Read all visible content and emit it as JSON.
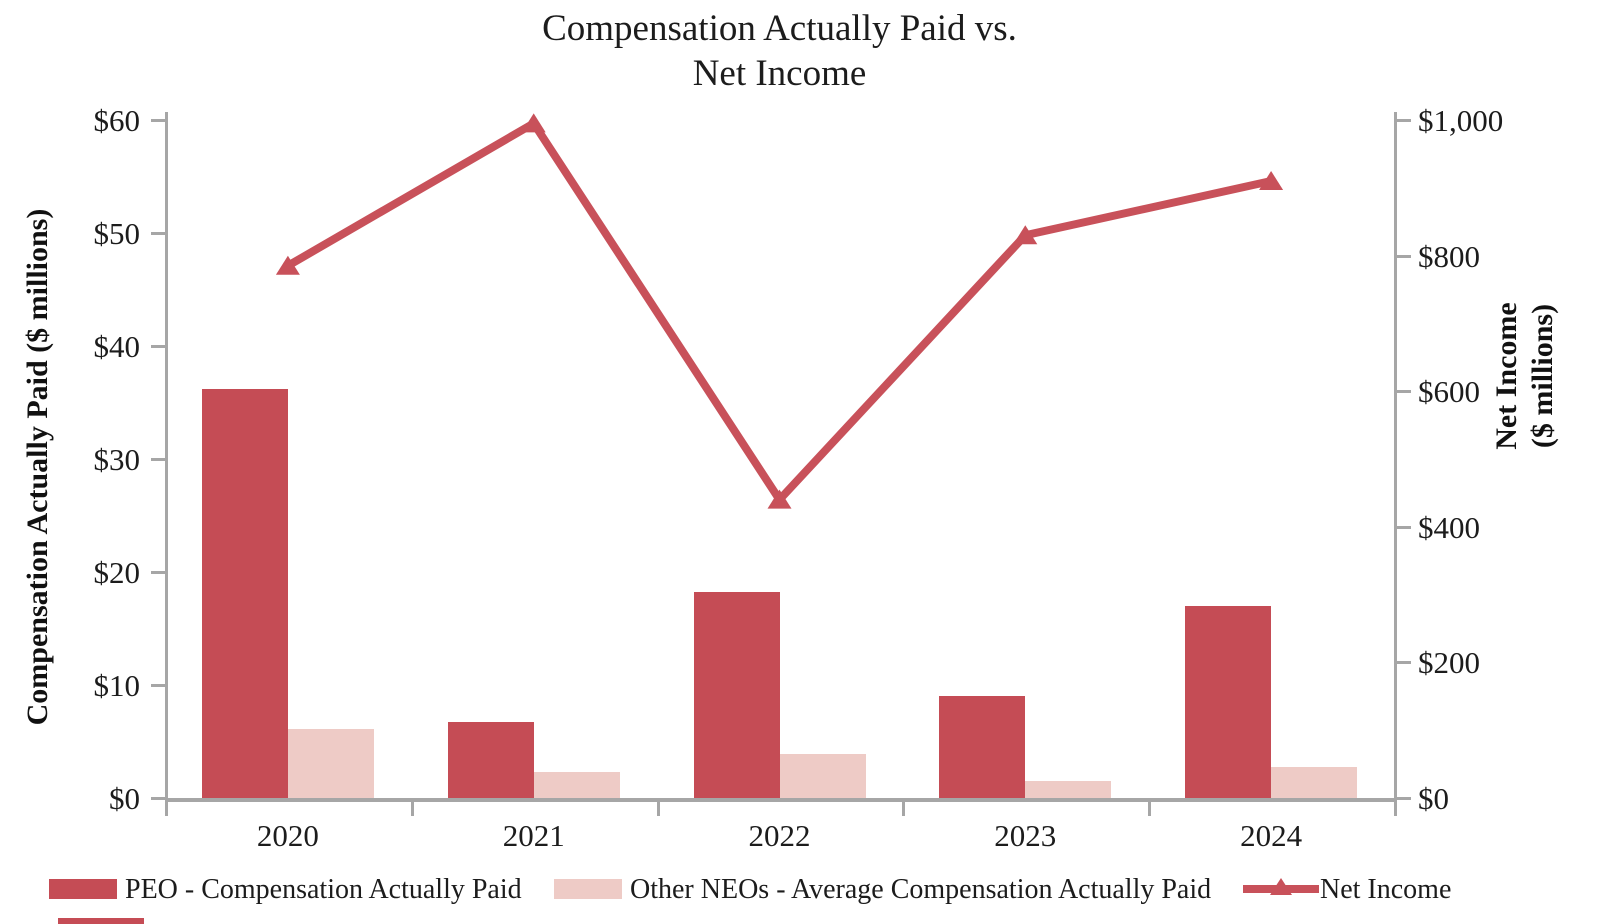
{
  "title": {
    "line1": "Compensation Actually Paid vs.",
    "line2": "Net Income"
  },
  "axes": {
    "left": {
      "title": "Compensation Actually Paid ($ millions)",
      "ticks": [
        "$0",
        "$10",
        "$20",
        "$30",
        "$40",
        "$50",
        "$60"
      ],
      "max": 60
    },
    "right": {
      "title_line1": "Net Income",
      "title_line2": "($ millions)",
      "ticks": [
        "$0",
        "$200",
        "$400",
        "$600",
        "$800",
        "$1,000"
      ],
      "max": 1000
    },
    "x": {
      "categories": [
        "2020",
        "2021",
        "2022",
        "2023",
        "2024"
      ]
    }
  },
  "legend": [
    {
      "label": "PEO - Compensation Actually Paid",
      "swatch": "bar",
      "color": "#c54c55"
    },
    {
      "label": "Other NEOs - Average Compensation Actually Paid",
      "swatch": "bar",
      "color": "#eecbc6"
    },
    {
      "label": "Net Income",
      "swatch": "line-triangle",
      "color": "#c8515a"
    }
  ],
  "colors": {
    "peo_bar": "#c54c55",
    "neo_bar": "#eecbc6",
    "net_income_line": "#c8515a",
    "axis": "#a6a6a6",
    "text": "#1c1c1c"
  },
  "chart_data": {
    "type": "bar+line",
    "title": "Compensation Actually Paid vs. Net Income",
    "categories": [
      "2020",
      "2021",
      "2022",
      "2023",
      "2024"
    ],
    "series": [
      {
        "name": "PEO - Compensation Actually Paid",
        "type": "bar",
        "axis": "left",
        "color": "#c54c55",
        "values": [
          36.2,
          6.7,
          18.2,
          9.0,
          17.0
        ]
      },
      {
        "name": "Other NEOs - Average Compensation Actually Paid",
        "type": "bar",
        "axis": "left",
        "color": "#eecbc6",
        "values": [
          6.1,
          2.3,
          3.9,
          1.5,
          2.7
        ]
      },
      {
        "name": "Net Income",
        "type": "line",
        "axis": "right",
        "color": "#c8515a",
        "marker": "triangle",
        "values": [
          785,
          995,
          440,
          830,
          910
        ]
      }
    ],
    "left_ylabel": "Compensation Actually Paid ($ millions)",
    "right_ylabel": "Net Income ($ millions)",
    "left_ylim": [
      0,
      60
    ],
    "right_ylim": [
      0,
      1000
    ],
    "grid": false,
    "legend_position": "bottom"
  }
}
